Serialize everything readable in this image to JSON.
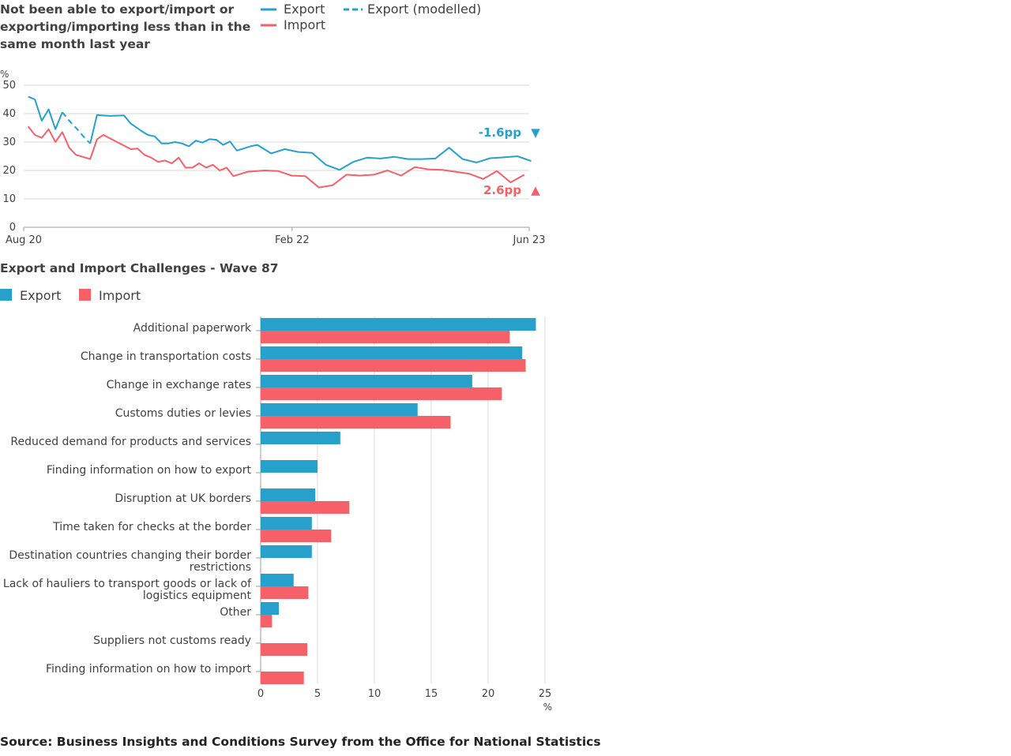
{
  "colors": {
    "export": "#27a0cc",
    "import": "#f66068"
  },
  "chart_data": [
    {
      "type": "line",
      "title": "Not been able to export/import or exporting/importing less than in the same month last year",
      "title_lines": [
        "Not been able to export/import or",
        "exporting/importing less than in the",
        "same month last year"
      ],
      "ylabel": "%",
      "ylim": [
        0,
        50
      ],
      "yticks": [
        0,
        10,
        20,
        30,
        40,
        50
      ],
      "xlim": [
        "Aug 20",
        "Jun 23"
      ],
      "x_tick_labels": [
        "Aug 20",
        "Feb 22",
        "Jun 23"
      ],
      "grid": true,
      "legend": [
        {
          "name": "Export",
          "style": "solid",
          "color": "#27a0cc"
        },
        {
          "name": "Export (modelled)",
          "style": "dashed",
          "color": "#27a0cc"
        },
        {
          "name": "Import",
          "style": "solid",
          "color": "#f66068"
        }
      ],
      "series": [
        {
          "name": "Export",
          "color": "#27a0cc",
          "segments": [
            {
              "style": "solid",
              "points": [
                [
                  "2020-08-10",
                  46
                ],
                [
                  "2020-08-24",
                  45
                ],
                [
                  "2020-09-07",
                  37.5
                ],
                [
                  "2020-09-21",
                  41.5
                ],
                [
                  "2020-10-05",
                  34.5
                ],
                [
                  "2020-10-19",
                  40.5
                ]
              ]
            },
            {
              "style": "dashed",
              "points": [
                [
                  "2020-10-19",
                  40.5
                ],
                [
                  "2020-11-02",
                  37.5
                ],
                [
                  "2020-11-16",
                  35
                ],
                [
                  "2020-12-01",
                  32
                ],
                [
                  "2020-12-15",
                  29.5
                ]
              ]
            },
            {
              "style": "solid",
              "points": [
                [
                  "2020-12-15",
                  29.5
                ],
                [
                  "2020-12-29",
                  39.5
                ],
                [
                  "2021-01-25",
                  39.2
                ],
                [
                  "2021-02-22",
                  39.4
                ],
                [
                  "2021-03-08",
                  36.5
                ],
                [
                  "2021-03-29",
                  34
                ],
                [
                  "2021-04-12",
                  32.5
                ],
                [
                  "2021-04-26",
                  32
                ],
                [
                  "2021-05-10",
                  29.5
                ],
                [
                  "2021-05-24",
                  29.5
                ],
                [
                  "2021-06-07",
                  30
                ],
                [
                  "2021-06-21",
                  29.5
                ],
                [
                  "2021-07-05",
                  28.5
                ],
                [
                  "2021-07-19",
                  30.5
                ],
                [
                  "2021-08-02",
                  29.8
                ],
                [
                  "2021-08-16",
                  31
                ],
                [
                  "2021-08-30",
                  30.8
                ],
                [
                  "2021-09-13",
                  29
                ],
                [
                  "2021-09-27",
                  30.2
                ],
                [
                  "2021-10-11",
                  27
                ],
                [
                  "2021-11-08",
                  28.5
                ],
                [
                  "2021-11-22",
                  29
                ],
                [
                  "2021-12-20",
                  26
                ],
                [
                  "2022-01-17",
                  27.5
                ],
                [
                  "2022-02-14",
                  26.5
                ],
                [
                  "2022-03-14",
                  26.2
                ],
                [
                  "2022-04-11",
                  22
                ],
                [
                  "2022-05-09",
                  20.2
                ],
                [
                  "2022-06-06",
                  23
                ],
                [
                  "2022-07-04",
                  24.5
                ],
                [
                  "2022-08-01",
                  24.2
                ],
                [
                  "2022-08-29",
                  24.8
                ],
                [
                  "2022-09-26",
                  24
                ],
                [
                  "2022-10-24",
                  24
                ],
                [
                  "2022-11-21",
                  24.2
                ],
                [
                  "2022-12-19",
                  28
                ],
                [
                  "2023-01-16",
                  24
                ],
                [
                  "2023-02-13",
                  22.8
                ],
                [
                  "2023-03-13",
                  24.3
                ],
                [
                  "2023-04-10",
                  24.6
                ],
                [
                  "2023-05-08",
                  25
                ],
                [
                  "2023-06-05",
                  23.3
                ]
              ]
            }
          ]
        },
        {
          "name": "Import",
          "color": "#f66068",
          "segments": [
            {
              "style": "solid",
              "points": [
                [
                  "2020-08-10",
                  35.5
                ],
                [
                  "2020-08-24",
                  32.5
                ],
                [
                  "2020-09-07",
                  31.5
                ],
                [
                  "2020-09-21",
                  34.5
                ],
                [
                  "2020-10-05",
                  30
                ],
                [
                  "2020-10-19",
                  33.5
                ],
                [
                  "2020-11-02",
                  28
                ],
                [
                  "2020-11-16",
                  25.5
                ],
                [
                  "2020-12-15",
                  24
                ],
                [
                  "2020-12-29",
                  31
                ],
                [
                  "2021-01-11",
                  32.5
                ],
                [
                  "2021-02-08",
                  30
                ],
                [
                  "2021-03-08",
                  27.5
                ],
                [
                  "2021-03-22",
                  27.7
                ],
                [
                  "2021-04-05",
                  25.5
                ],
                [
                  "2021-04-19",
                  24.5
                ],
                [
                  "2021-05-03",
                  23
                ],
                [
                  "2021-05-17",
                  23.5
                ],
                [
                  "2021-05-31",
                  22.5
                ],
                [
                  "2021-06-14",
                  24.5
                ],
                [
                  "2021-06-28",
                  21
                ],
                [
                  "2021-07-12",
                  21
                ],
                [
                  "2021-07-26",
                  22.5
                ],
                [
                  "2021-08-09",
                  21
                ],
                [
                  "2021-08-23",
                  22
                ],
                [
                  "2021-09-06",
                  20
                ],
                [
                  "2021-09-20",
                  21
                ],
                [
                  "2021-10-04",
                  18
                ],
                [
                  "2021-11-01",
                  19.5
                ],
                [
                  "2021-12-06",
                  20
                ],
                [
                  "2022-01-03",
                  19.8
                ],
                [
                  "2022-01-31",
                  18.2
                ],
                [
                  "2022-02-28",
                  18
                ],
                [
                  "2022-03-28",
                  14
                ],
                [
                  "2022-04-25",
                  14.8
                ],
                [
                  "2022-05-23",
                  18.5
                ],
                [
                  "2022-06-20",
                  18.2
                ],
                [
                  "2022-07-18",
                  18.5
                ],
                [
                  "2022-08-15",
                  20
                ],
                [
                  "2022-09-12",
                  18.2
                ],
                [
                  "2022-10-10",
                  21.2
                ],
                [
                  "2022-11-07",
                  20.4
                ],
                [
                  "2022-12-05",
                  20.2
                ],
                [
                  "2023-01-02",
                  19.5
                ],
                [
                  "2023-01-30",
                  18.8
                ],
                [
                  "2023-02-27",
                  17
                ],
                [
                  "2023-03-27",
                  19.8
                ],
                [
                  "2023-04-24",
                  15.8
                ],
                [
                  "2023-05-22",
                  18.5
                ]
              ]
            }
          ]
        }
      ],
      "annotations": [
        {
          "series": "Export",
          "label": "-1.6pp",
          "marker": "▼",
          "y": 23.3
        },
        {
          "series": "Import",
          "label": "2.6pp",
          "marker": "▲",
          "y": 18.5
        }
      ]
    },
    {
      "type": "bar",
      "orientation": "horizontal",
      "title": "Export and Import Challenges - Wave 87",
      "xlabel": "%",
      "xlim": [
        0,
        25
      ],
      "xticks": [
        0,
        5,
        10,
        15,
        20,
        25
      ],
      "grid": true,
      "legend_position": "top-left",
      "categories": [
        "Additional paperwork",
        "Change in transportation costs",
        "Change in exchange rates",
        "Customs duties or levies",
        "Reduced demand for products and services",
        "Finding information on how to export",
        "Disruption at UK borders",
        "Time taken for checks at the border",
        "Destination countries changing their border restrictions",
        "Lack of hauliers to transport goods or lack of logistics equipment",
        "Other",
        "Suppliers not customs ready",
        "Finding information on how to import"
      ],
      "category_label_lines": [
        [
          "Additional paperwork"
        ],
        [
          "Change in transportation costs"
        ],
        [
          "Change in exchange rates"
        ],
        [
          "Customs duties or levies"
        ],
        [
          "Reduced demand for products and services"
        ],
        [
          "Finding information on how to export"
        ],
        [
          "Disruption at UK borders"
        ],
        [
          "Time taken for checks at the border"
        ],
        [
          "Destination countries changing their border",
          "restrictions"
        ],
        [
          "Lack of hauliers to transport goods or lack of",
          "logistics equipment"
        ],
        [
          "Other"
        ],
        [
          "Suppliers not customs ready"
        ],
        [
          "Finding information on how to import"
        ]
      ],
      "series": [
        {
          "name": "Export",
          "color": "#27a0cc",
          "values": [
            24.2,
            23,
            18.6,
            13.8,
            7,
            5,
            4.8,
            4.5,
            4.5,
            2.9,
            1.6,
            null,
            null
          ]
        },
        {
          "name": "Import",
          "color": "#f66068",
          "values": [
            21.9,
            23.3,
            21.2,
            16.7,
            null,
            null,
            7.8,
            6.2,
            null,
            4.2,
            1,
            4.1,
            3.8
          ]
        }
      ]
    }
  ],
  "source": "Source: Business Insights and Conditions Survey from the Office for National Statistics"
}
